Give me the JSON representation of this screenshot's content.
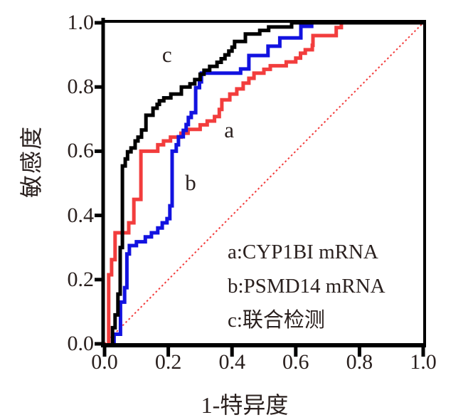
{
  "figure": {
    "background": "#ffffff",
    "text_color": "#2a201e",
    "axis_color": "#000000"
  },
  "chart_data": {
    "type": "line",
    "subtype": "roc-step-curves",
    "title": "",
    "xlabel": "1-特异度",
    "ylabel": "敏感度",
    "xlim": [
      0.0,
      1.0
    ],
    "ylim": [
      0.0,
      1.0
    ],
    "xticks": [
      "0.0",
      "0.2",
      "0.4",
      "0.6",
      "0.8",
      "1.0"
    ],
    "yticks": [
      "0.0",
      "0.2",
      "0.4",
      "0.6",
      "0.8",
      "1.0"
    ],
    "grid": false,
    "legend": [
      "a:CYP1BI mRNA",
      "b:PSMD14 mRNA",
      "c:联合检测"
    ],
    "legend_position": "inside-lower-right",
    "reference_line": {
      "from": [
        0,
        0
      ],
      "to": [
        1,
        1
      ],
      "color": "#f23b3b",
      "style": "dotted"
    },
    "annotations": [
      {
        "text": "a",
        "x": 0.391,
        "y": 0.665
      },
      {
        "text": "b",
        "x": 0.27,
        "y": 0.501
      },
      {
        "text": "c",
        "x": 0.196,
        "y": 0.9
      }
    ],
    "series": [
      {
        "id": "a",
        "name": "CYP1BI mRNA",
        "color": "#f23d3d",
        "points": [
          [
            0.013,
            0
          ],
          [
            0.013,
            0.215
          ],
          [
            0.022,
            0.215
          ],
          [
            0.022,
            0.262
          ],
          [
            0.033,
            0.262
          ],
          [
            0.033,
            0.346
          ],
          [
            0.076,
            0.346
          ],
          [
            0.076,
            0.377
          ],
          [
            0.092,
            0.377
          ],
          [
            0.092,
            0.45
          ],
          [
            0.114,
            0.45
          ],
          [
            0.114,
            0.6
          ],
          [
            0.167,
            0.6
          ],
          [
            0.167,
            0.62
          ],
          [
            0.185,
            0.62
          ],
          [
            0.185,
            0.632
          ],
          [
            0.207,
            0.632
          ],
          [
            0.207,
            0.644
          ],
          [
            0.24,
            0.644
          ],
          [
            0.24,
            0.656
          ],
          [
            0.262,
            0.656
          ],
          [
            0.262,
            0.668
          ],
          [
            0.3,
            0.668
          ],
          [
            0.3,
            0.682
          ],
          [
            0.322,
            0.682
          ],
          [
            0.322,
            0.694
          ],
          [
            0.345,
            0.694
          ],
          [
            0.345,
            0.708
          ],
          [
            0.36,
            0.708
          ],
          [
            0.36,
            0.73
          ],
          [
            0.368,
            0.73
          ],
          [
            0.368,
            0.76
          ],
          [
            0.393,
            0.76
          ],
          [
            0.393,
            0.778
          ],
          [
            0.415,
            0.778
          ],
          [
            0.415,
            0.794
          ],
          [
            0.435,
            0.794
          ],
          [
            0.435,
            0.812
          ],
          [
            0.453,
            0.812
          ],
          [
            0.453,
            0.827
          ],
          [
            0.469,
            0.827
          ],
          [
            0.469,
            0.843
          ],
          [
            0.5,
            0.843
          ],
          [
            0.5,
            0.855
          ],
          [
            0.52,
            0.855
          ],
          [
            0.52,
            0.866
          ],
          [
            0.57,
            0.866
          ],
          [
            0.57,
            0.878
          ],
          [
            0.6,
            0.878
          ],
          [
            0.6,
            0.89
          ],
          [
            0.615,
            0.89
          ],
          [
            0.615,
            0.905
          ],
          [
            0.63,
            0.905
          ],
          [
            0.63,
            0.916
          ],
          [
            0.652,
            0.916
          ],
          [
            0.652,
            0.93
          ],
          [
            0.654,
            0.93
          ],
          [
            0.654,
            0.96
          ],
          [
            0.727,
            0.96
          ],
          [
            0.727,
            0.985
          ],
          [
            0.743,
            0.985
          ],
          [
            0.743,
            1.0
          ],
          [
            1,
            1
          ]
        ]
      },
      {
        "id": "b",
        "name": "PSMD14 mRNA",
        "color": "#1212e0",
        "points": [
          [
            0.03,
            0
          ],
          [
            0.03,
            0.03
          ],
          [
            0.05,
            0.03
          ],
          [
            0.05,
            0.13
          ],
          [
            0.063,
            0.13
          ],
          [
            0.063,
            0.175
          ],
          [
            0.07,
            0.175
          ],
          [
            0.07,
            0.28
          ],
          [
            0.078,
            0.28
          ],
          [
            0.078,
            0.306
          ],
          [
            0.1,
            0.306
          ],
          [
            0.1,
            0.318
          ],
          [
            0.128,
            0.318
          ],
          [
            0.128,
            0.333
          ],
          [
            0.147,
            0.333
          ],
          [
            0.147,
            0.346
          ],
          [
            0.167,
            0.346
          ],
          [
            0.167,
            0.361
          ],
          [
            0.181,
            0.361
          ],
          [
            0.181,
            0.377
          ],
          [
            0.196,
            0.377
          ],
          [
            0.196,
            0.39
          ],
          [
            0.205,
            0.39
          ],
          [
            0.205,
            0.43
          ],
          [
            0.212,
            0.43
          ],
          [
            0.212,
            0.6
          ],
          [
            0.225,
            0.6
          ],
          [
            0.225,
            0.62
          ],
          [
            0.232,
            0.62
          ],
          [
            0.232,
            0.645
          ],
          [
            0.247,
            0.645
          ],
          [
            0.247,
            0.665
          ],
          [
            0.256,
            0.665
          ],
          [
            0.256,
            0.683
          ],
          [
            0.263,
            0.683
          ],
          [
            0.263,
            0.705
          ],
          [
            0.272,
            0.705
          ],
          [
            0.272,
            0.72
          ],
          [
            0.286,
            0.72
          ],
          [
            0.286,
            0.798
          ],
          [
            0.298,
            0.798
          ],
          [
            0.298,
            0.816
          ],
          [
            0.304,
            0.816
          ],
          [
            0.304,
            0.843
          ],
          [
            0.427,
            0.843
          ],
          [
            0.427,
            0.856
          ],
          [
            0.453,
            0.856
          ],
          [
            0.453,
            0.898
          ],
          [
            0.513,
            0.898
          ],
          [
            0.513,
            0.927
          ],
          [
            0.55,
            0.927
          ],
          [
            0.55,
            0.953
          ],
          [
            0.616,
            0.953
          ],
          [
            0.616,
            0.989
          ],
          [
            0.65,
            0.989
          ],
          [
            0.65,
            1.0
          ],
          [
            1,
            1
          ]
        ]
      },
      {
        "id": "c",
        "name": "联合检测",
        "color": "#000000",
        "points": [
          [
            0.025,
            0
          ],
          [
            0.025,
            0.05
          ],
          [
            0.033,
            0.05
          ],
          [
            0.033,
            0.09
          ],
          [
            0.042,
            0.09
          ],
          [
            0.042,
            0.155
          ],
          [
            0.049,
            0.155
          ],
          [
            0.049,
            0.3
          ],
          [
            0.056,
            0.3
          ],
          [
            0.056,
            0.554
          ],
          [
            0.065,
            0.554
          ],
          [
            0.065,
            0.576
          ],
          [
            0.072,
            0.576
          ],
          [
            0.072,
            0.598
          ],
          [
            0.083,
            0.598
          ],
          [
            0.083,
            0.61
          ],
          [
            0.096,
            0.61
          ],
          [
            0.096,
            0.632
          ],
          [
            0.105,
            0.632
          ],
          [
            0.105,
            0.644
          ],
          [
            0.116,
            0.644
          ],
          [
            0.116,
            0.666
          ],
          [
            0.13,
            0.666
          ],
          [
            0.13,
            0.712
          ],
          [
            0.152,
            0.712
          ],
          [
            0.152,
            0.734
          ],
          [
            0.165,
            0.734
          ],
          [
            0.165,
            0.746
          ],
          [
            0.172,
            0.746
          ],
          [
            0.172,
            0.757
          ],
          [
            0.186,
            0.757
          ],
          [
            0.186,
            0.766
          ],
          [
            0.208,
            0.766
          ],
          [
            0.208,
            0.778
          ],
          [
            0.241,
            0.778
          ],
          [
            0.241,
            0.8
          ],
          [
            0.268,
            0.8
          ],
          [
            0.268,
            0.81
          ],
          [
            0.283,
            0.81
          ],
          [
            0.283,
            0.823
          ],
          [
            0.3,
            0.823
          ],
          [
            0.3,
            0.84
          ],
          [
            0.312,
            0.84
          ],
          [
            0.312,
            0.852
          ],
          [
            0.33,
            0.852
          ],
          [
            0.33,
            0.864
          ],
          [
            0.353,
            0.864
          ],
          [
            0.353,
            0.877
          ],
          [
            0.366,
            0.877
          ],
          [
            0.366,
            0.888
          ],
          [
            0.378,
            0.888
          ],
          [
            0.378,
            0.9
          ],
          [
            0.39,
            0.9
          ],
          [
            0.39,
            0.912
          ],
          [
            0.4,
            0.912
          ],
          [
            0.4,
            0.924
          ],
          [
            0.408,
            0.924
          ],
          [
            0.408,
            0.942
          ],
          [
            0.442,
            0.942
          ],
          [
            0.442,
            0.965
          ],
          [
            0.487,
            0.965
          ],
          [
            0.487,
            0.976
          ],
          [
            0.515,
            0.976
          ],
          [
            0.515,
            0.987
          ],
          [
            0.587,
            0.987
          ],
          [
            0.587,
            1.0
          ],
          [
            1,
            1
          ]
        ]
      }
    ]
  }
}
